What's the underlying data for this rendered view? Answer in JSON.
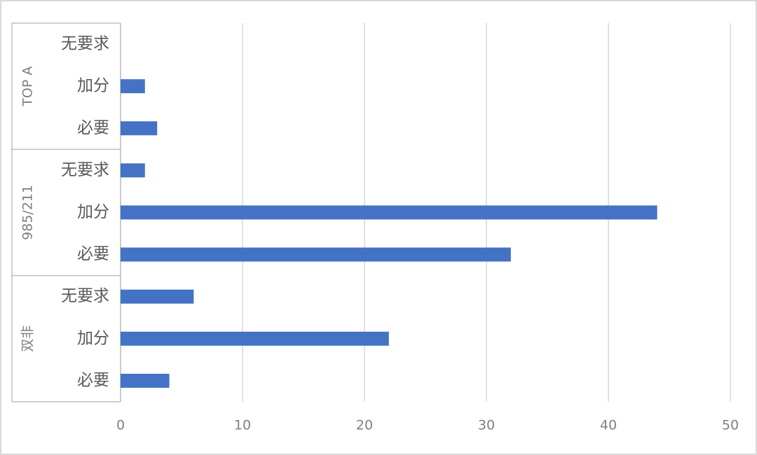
{
  "chart_data": {
    "type": "bar",
    "orientation": "horizontal",
    "color": "#4472c4",
    "groups": [
      {
        "name": "TOP A",
        "categories": [
          "无要求",
          "加分",
          "必要"
        ],
        "values": [
          0,
          2,
          3
        ]
      },
      {
        "name": "985/211",
        "categories": [
          "无要求",
          "加分",
          "必要"
        ],
        "values": [
          2,
          44,
          32
        ]
      },
      {
        "name": "双非",
        "categories": [
          "无要求",
          "加分",
          "必要"
        ],
        "values": [
          6,
          22,
          4
        ]
      }
    ],
    "xlim": [
      0,
      50
    ],
    "xticks": [
      0,
      10,
      20,
      30,
      40,
      50
    ],
    "grid": true
  }
}
